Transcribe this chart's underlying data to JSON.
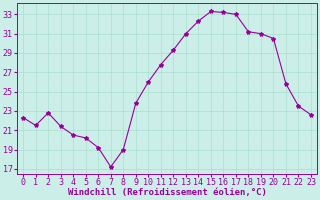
{
  "x": [
    0,
    1,
    2,
    3,
    4,
    5,
    6,
    7,
    8,
    9,
    10,
    11,
    12,
    13,
    14,
    15,
    16,
    17,
    18,
    19,
    20,
    21,
    22,
    23
  ],
  "y": [
    22.3,
    21.5,
    22.8,
    21.4,
    20.5,
    20.2,
    19.2,
    17.2,
    19.0,
    23.8,
    26.0,
    27.8,
    29.3,
    31.0,
    32.3,
    33.3,
    33.2,
    33.0,
    31.2,
    31.0,
    30.5,
    25.8,
    23.5,
    22.6
  ],
  "line_color": "#990099",
  "marker": "*",
  "marker_size": 3,
  "bg_color": "#cceee8",
  "grid_color": "#aaddcc",
  "xlabel": "Windchill (Refroidissement éolien,°C)",
  "xlabel_color": "#990099",
  "xlabel_fontsize": 6.5,
  "ylabel_ticks": [
    17,
    19,
    21,
    23,
    25,
    27,
    29,
    31,
    33
  ],
  "ylim": [
    16.5,
    34.2
  ],
  "xlim": [
    -0.5,
    23.5
  ],
  "tick_color": "#990099",
  "tick_fontsize": 6.0,
  "spine_color": "#990099"
}
